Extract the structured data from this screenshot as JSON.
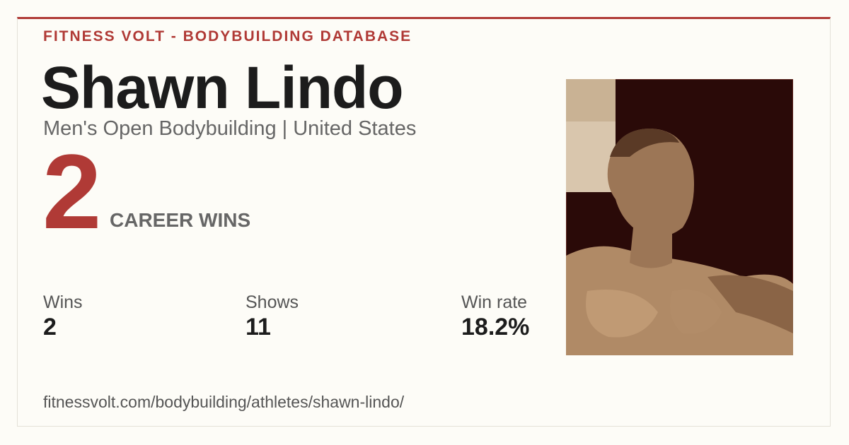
{
  "header": {
    "brand": "FITNESS VOLT - BODYBUILDING DATABASE"
  },
  "athlete": {
    "name": "Shawn Lindo",
    "subtitle": "Men's Open Bodybuilding | United States"
  },
  "highlight": {
    "value": "2",
    "label": "CAREER WINS"
  },
  "stats": [
    {
      "label": "Wins",
      "value": "2"
    },
    {
      "label": "Shows",
      "value": "11"
    },
    {
      "label": "Win rate",
      "value": "18.2%"
    }
  ],
  "url": "fitnessvolt.com/bodybuilding/athletes/shawn-lindo/"
}
